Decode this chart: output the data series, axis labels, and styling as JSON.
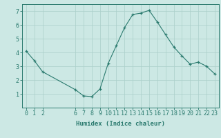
{
  "x": [
    0,
    1,
    2,
    6,
    7,
    8,
    9,
    10,
    11,
    12,
    13,
    14,
    15,
    16,
    17,
    18,
    19,
    20,
    21,
    22,
    23
  ],
  "y": [
    4.1,
    3.4,
    2.6,
    1.3,
    0.85,
    0.8,
    1.35,
    3.2,
    4.5,
    5.8,
    6.75,
    6.85,
    7.05,
    6.2,
    5.3,
    4.4,
    3.75,
    3.15,
    3.3,
    3.0,
    2.45
  ],
  "line_color": "#2a7a6e",
  "marker": "+",
  "bg_color": "#cce8e4",
  "grid_color": "#aacfca",
  "axis_label": "Humidex (Indice chaleur)",
  "ylim": [
    0,
    7.5
  ],
  "xlim": [
    -0.5,
    23.5
  ],
  "xticks": [
    0,
    1,
    2,
    6,
    7,
    8,
    9,
    10,
    11,
    12,
    13,
    14,
    15,
    16,
    17,
    18,
    19,
    20,
    21,
    22,
    23
  ],
  "yticks": [
    1,
    2,
    3,
    4,
    5,
    6,
    7
  ],
  "tick_color": "#2a7a6e",
  "label_fontsize": 6.5,
  "tick_fontsize": 6
}
